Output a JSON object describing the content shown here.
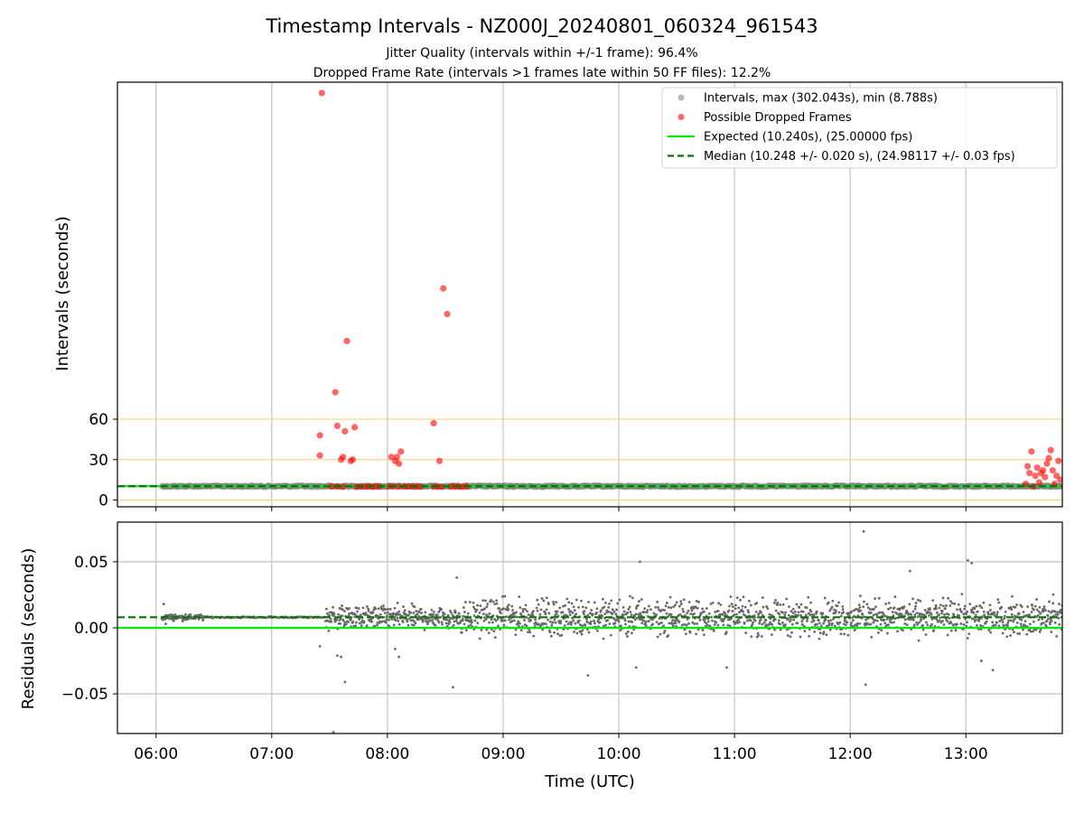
{
  "chart_data": [
    {
      "type": "scatter",
      "title": "Timestamp Intervals - NZ000J_20240801_060324_961543",
      "subtitle_lines": [
        "Jitter Quality (intervals within +/-1 frame): 96.4%",
        "Dropped Frame Rate (intervals >1 frames late within 50 FF files): 12.2%"
      ],
      "xlabel": "",
      "ylabel": "Intervals (seconds)",
      "x_ticks": [
        "06:00",
        "07:00",
        "08:00",
        "09:00",
        "10:00",
        "11:00",
        "12:00",
        "13:00"
      ],
      "y_ticks": [
        0,
        30,
        60
      ],
      "xlim": [
        "05:40",
        "13:50"
      ],
      "ylim": [
        -5,
        310
      ],
      "grid": "x",
      "reference_lines": [
        0,
        30,
        60
      ],
      "reference_line_color": "#fbd784",
      "legend_position": "top-right",
      "legend": [
        "Intervals, max (302.043s), min (8.788s)",
        "Possible Dropped Frames",
        "Expected (10.240s), (25.00000 fps)",
        "Median (10.248 +/- 0.020 s), (24.98117 +/- 0.03 fps)"
      ],
      "series": [
        {
          "name": "Intervals, max (302.043s), min (8.788s)",
          "color": "#808080",
          "style": "band",
          "x_start": "06:03",
          "x_end": "13:50",
          "y": 10.25
        },
        {
          "name": "Possible Dropped Frames",
          "color": "#ff0000",
          "points": [
            [
              "07:26",
              302
            ],
            [
              "07:25",
              48
            ],
            [
              "07:25",
              33
            ],
            [
              "07:33",
              80
            ],
            [
              "07:34",
              55
            ],
            [
              "07:36",
              30
            ],
            [
              "07:37",
              32
            ],
            [
              "07:38",
              51
            ],
            [
              "07:39",
              118
            ],
            [
              "07:41",
              29
            ],
            [
              "07:42",
              30
            ],
            [
              "07:43",
              54
            ],
            [
              "07:31",
              10
            ],
            [
              "07:34",
              10
            ],
            [
              "07:37",
              10
            ],
            [
              "07:44",
              10
            ],
            [
              "07:46",
              10
            ],
            [
              "07:48",
              10
            ],
            [
              "07:50",
              10
            ],
            [
              "07:52",
              10
            ],
            [
              "07:54",
              10
            ],
            [
              "07:56",
              10
            ],
            [
              "08:02",
              32
            ],
            [
              "08:04",
              29
            ],
            [
              "08:05",
              32
            ],
            [
              "08:06",
              27
            ],
            [
              "08:07",
              36
            ],
            [
              "08:01",
              10
            ],
            [
              "08:03",
              10
            ],
            [
              "08:06",
              10
            ],
            [
              "08:09",
              10
            ],
            [
              "08:11",
              10
            ],
            [
              "08:13",
              10
            ],
            [
              "08:15",
              10
            ],
            [
              "08:17",
              10
            ],
            [
              "08:24",
              57
            ],
            [
              "08:27",
              29
            ],
            [
              "08:29",
              157
            ],
            [
              "08:31",
              138
            ],
            [
              "08:24",
              10
            ],
            [
              "08:26",
              10
            ],
            [
              "08:28",
              10
            ],
            [
              "08:33",
              10
            ],
            [
              "08:35",
              10
            ],
            [
              "08:37",
              10
            ],
            [
              "08:39",
              10
            ],
            [
              "08:41",
              10
            ],
            [
              "13:31",
              12
            ],
            [
              "13:32",
              25
            ],
            [
              "13:33",
              20
            ],
            [
              "13:34",
              36
            ],
            [
              "13:35",
              10
            ],
            [
              "13:36",
              18
            ],
            [
              "13:37",
              24
            ],
            [
              "13:38",
              13
            ],
            [
              "13:39",
              20
            ],
            [
              "13:40",
              22
            ],
            [
              "13:41",
              17
            ],
            [
              "13:42",
              27
            ],
            [
              "13:43",
              31
            ],
            [
              "13:44",
              37
            ],
            [
              "13:45",
              22
            ],
            [
              "13:46",
              12
            ],
            [
              "13:47",
              18
            ],
            [
              "13:48",
              29
            ],
            [
              "13:49",
              15
            ]
          ]
        },
        {
          "name": "Expected (10.240s), (25.00000 fps)",
          "color": "#00ee00",
          "style": "line",
          "y": 10.24
        },
        {
          "name": "Median (10.248 +/- 0.020 s), (24.98117 +/- 0.03 fps)",
          "color": "#007800",
          "style": "dashed",
          "y": 10.248
        }
      ]
    },
    {
      "type": "scatter",
      "xlabel": "Time (UTC)",
      "ylabel": "Residuals (seconds)",
      "x_ticks": [
        "06:00",
        "07:00",
        "08:00",
        "09:00",
        "10:00",
        "11:00",
        "12:00",
        "13:00"
      ],
      "y_ticks": [
        "0.05",
        "0.00",
        "−0.05"
      ],
      "xlim": [
        "05:40",
        "13:50"
      ],
      "ylim": [
        -0.08,
        0.08
      ],
      "grid": "both",
      "series": [
        {
          "name": "Residuals",
          "color": "#696969",
          "segments": [
            {
              "x_start": "06:03",
              "x_end": "06:25",
              "center": 0.008,
              "spread": 0.002
            },
            {
              "x_start": "06:25",
              "x_end": "07:28",
              "center": 0.008,
              "spread": 0.0005
            },
            {
              "x_start": "07:28",
              "x_end": "08:35",
              "center": 0.008,
              "spread": 0.008
            },
            {
              "x_start": "08:35",
              "x_end": "13:50",
              "center": 0.008,
              "spread": 0.012
            }
          ],
          "outliers": [
            [
              "06:04",
              0.018
            ],
            [
              "06:05",
              0.003
            ],
            [
              "07:25",
              -0.014
            ],
            [
              "07:34",
              -0.021
            ],
            [
              "07:36",
              -0.022
            ],
            [
              "07:38",
              -0.041
            ],
            [
              "07:32",
              -0.079
            ],
            [
              "08:04",
              -0.016
            ],
            [
              "08:06",
              -0.022
            ],
            [
              "08:34",
              -0.045
            ],
            [
              "08:36",
              0.038
            ],
            [
              "09:44",
              -0.036
            ],
            [
              "10:09",
              -0.03
            ],
            [
              "10:11",
              0.05
            ],
            [
              "10:56",
              -0.03
            ],
            [
              "12:07",
              0.073
            ],
            [
              "12:08",
              -0.043
            ],
            [
              "12:31",
              0.043
            ],
            [
              "13:01",
              0.051
            ],
            [
              "13:03",
              0.049
            ],
            [
              "13:14",
              -0.032
            ],
            [
              "13:08",
              -0.025
            ]
          ]
        },
        {
          "name": "Expected",
          "color": "#00ee00",
          "style": "line",
          "y": 0.0
        },
        {
          "name": "Median",
          "color": "#007800",
          "style": "dashed",
          "y": 0.008
        }
      ]
    }
  ]
}
